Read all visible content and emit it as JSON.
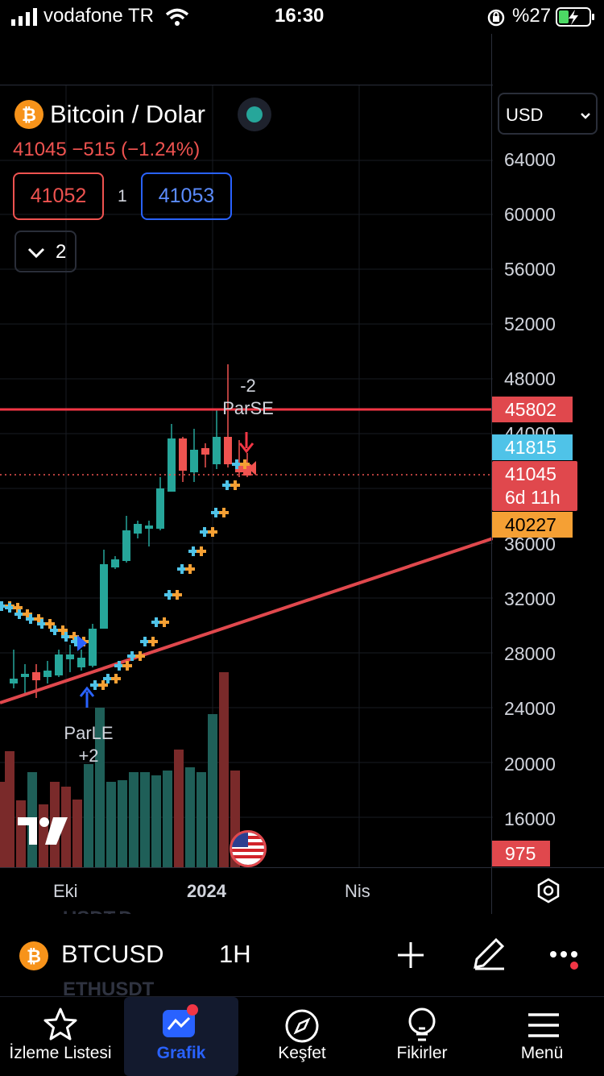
{
  "status_bar": {
    "carrier": "vodafone TR",
    "time": "16:30",
    "battery": "%27"
  },
  "symbol_header": {
    "name": "Bitcoin / Dolar",
    "price_line": "41045  −515  (−1.24%)",
    "sell_price": "41052",
    "spread": "1",
    "buy_price": "41053",
    "indicators_toggle": "2",
    "currency": "USD"
  },
  "price_axis": {
    "labels": [
      "64000",
      "60000",
      "56000",
      "52000",
      "48000",
      "44000",
      "36000",
      "32000",
      "28000",
      "24000",
      "20000",
      "16000"
    ],
    "tags": {
      "resistance": "45802",
      "blue": "41815",
      "last": "41045",
      "countdown": "6d 11h",
      "orange": "40227",
      "volume": "975"
    }
  },
  "time_axis": {
    "labels": [
      "Eki",
      "2024",
      "Nis"
    ]
  },
  "annotations": {
    "short_signal": "-2",
    "short_name": "ParSE",
    "long_name": "ParLE",
    "long_signal": "+2"
  },
  "background_list": [
    "USDT.D",
    "ETHUSDT"
  ],
  "toolbar": {
    "symbol": "BTCUSD",
    "interval": "1H"
  },
  "tab_bar": {
    "items": [
      "İzleme Listesi",
      "Grafik",
      "Keşfet",
      "Fikirler",
      "Menü"
    ],
    "active": "Grafik"
  },
  "colors": {
    "up": "#26a69a",
    "down": "#ef5350",
    "accent": "#2962ff",
    "resistance": "#f23645",
    "psar_blue": "#4fc3e8",
    "psar_orange": "#f5a034"
  }
}
